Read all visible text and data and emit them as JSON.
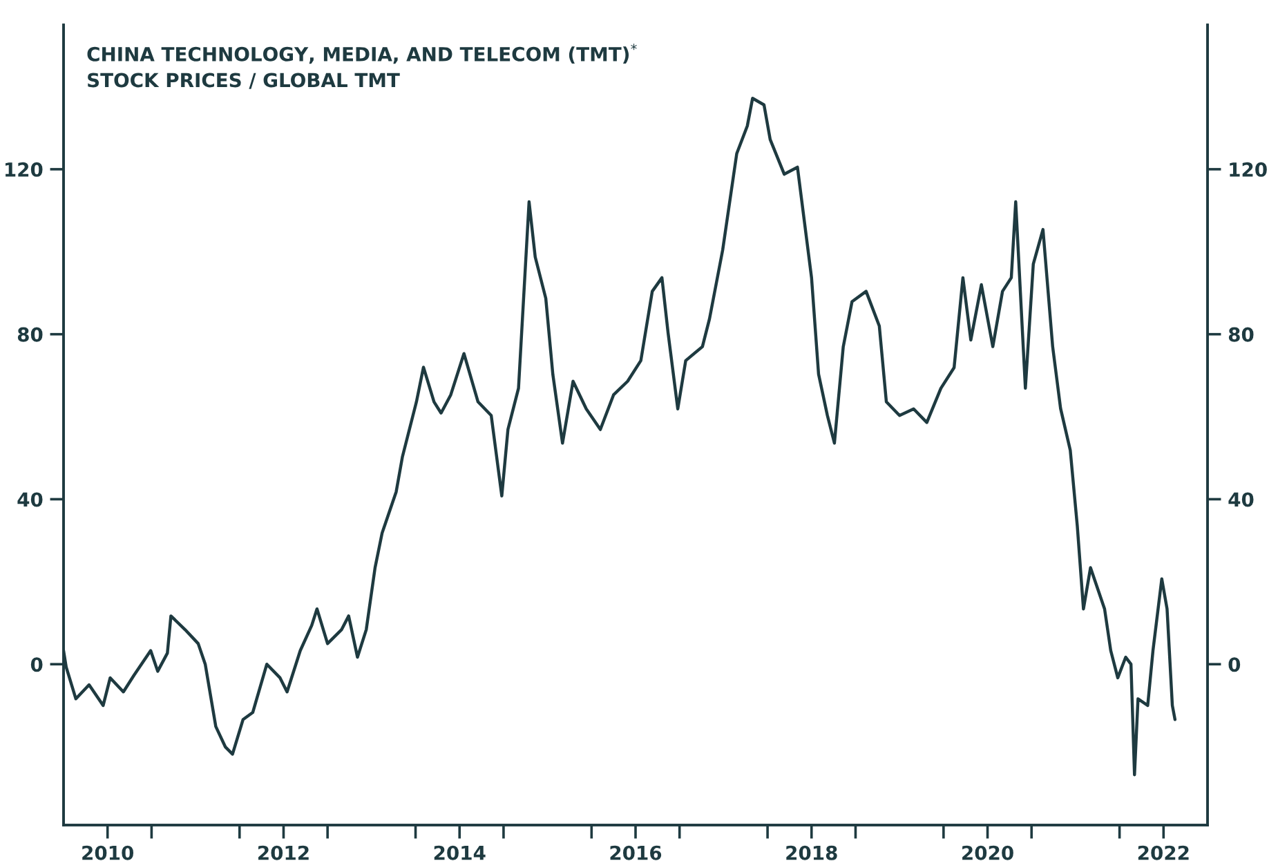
{
  "chart_data": {
    "type": "line",
    "title": "CHINA TECHNOLOGY, MEDIA, AND TELECOM (TMT)$^{*}$\nSTOCK PRICES / GLOBAL TMT",
    "x": [
      2010.0,
      2010.03,
      2010.14,
      2010.29,
      2010.45,
      2010.53,
      2010.68,
      2010.8,
      2010.99,
      2011.07,
      2011.18,
      2011.22,
      2011.38,
      2011.53,
      2011.61,
      2011.73,
      2011.84,
      2011.92,
      2012.04,
      2012.15,
      2012.31,
      2012.46,
      2012.54,
      2012.69,
      2012.82,
      2012.88,
      2013.0,
      2013.16,
      2013.24,
      2013.34,
      2013.44,
      2013.54,
      2013.62,
      2013.78,
      2013.85,
      2014.01,
      2014.09,
      2014.21,
      2014.29,
      2014.4,
      2014.55,
      2014.71,
      2014.86,
      2014.98,
      2015.05,
      2015.17,
      2015.29,
      2015.36,
      2015.48,
      2015.56,
      2015.67,
      2015.79,
      2015.94,
      2016.1,
      2016.25,
      2016.41,
      2016.56,
      2016.69,
      2016.8,
      2016.87,
      2016.98,
      2017.07,
      2017.26,
      2017.34,
      2017.49,
      2017.65,
      2017.77,
      2017.83,
      2017.96,
      2018.03,
      2018.19,
      2018.34,
      2018.5,
      2018.58,
      2018.68,
      2018.76,
      2018.86,
      2018.96,
      2019.12,
      2019.27,
      2019.35,
      2019.5,
      2019.66,
      2019.81,
      2019.97,
      2020.12,
      2020.22,
      2020.31,
      2020.43,
      2020.56,
      2020.67,
      2020.77,
      2020.82,
      2020.93,
      2021.02,
      2021.13,
      2021.24,
      2021.33,
      2021.44,
      2021.52,
      2021.59,
      2021.67,
      2021.83,
      2021.9,
      2021.98,
      2022.07,
      2022.13,
      2022.17,
      2022.21,
      2022.32,
      2022.38,
      2022.48,
      2022.54,
      2022.6,
      2022.63
    ],
    "series": [
      {
        "color": "#1e3a40",
        "values": [
          3.3,
          -0.7,
          -8.4,
          -5.0,
          -10.0,
          -3.3,
          -6.7,
          -2.7,
          3.3,
          -1.7,
          2.7,
          11.7,
          8.4,
          5.0,
          0,
          -15.1,
          -20.1,
          -21.8,
          -13.4,
          -11.7,
          0,
          -3.3,
          -6.7,
          3.3,
          9.4,
          13.4,
          5.0,
          8.4,
          11.7,
          1.7,
          8.4,
          23.4,
          31.8,
          41.8,
          50.2,
          63.6,
          72.0,
          63.6,
          60.9,
          65.3,
          75.3,
          63.6,
          60.3,
          40.8,
          56.9,
          66.9,
          112.1,
          98.7,
          88.7,
          70.3,
          53.6,
          68.6,
          61.9,
          56.9,
          65.3,
          68.6,
          73.6,
          90.4,
          93.7,
          80.3,
          61.9,
          73.6,
          77.0,
          83.7,
          100.4,
          123.8,
          130.5,
          137.2,
          135.6,
          127.2,
          118.8,
          120.5,
          93.7,
          70.3,
          60.3,
          53.6,
          76.9,
          87.9,
          90.4,
          82.0,
          63.6,
          60.3,
          61.9,
          58.6,
          66.9,
          71.9,
          93.7,
          78.6,
          92.0,
          77.0,
          90.4,
          93.7,
          112.1,
          66.9,
          97.0,
          105.4,
          77.0,
          62.0,
          51.9,
          33.5,
          13.4,
          23.4,
          13.4,
          3.3,
          -3.3,
          1.7,
          0,
          -26.8,
          -8.4,
          -10.0,
          3.3,
          20.7,
          13.4,
          -10.0,
          -13.4
        ]
      }
    ],
    "xlim": [
      2010,
      2023
    ],
    "xticks": [
      {
        "value": 2010.5,
        "label": "2010"
      },
      {
        "value": 2011,
        "label": null
      },
      {
        "value": 2012,
        "label": null
      },
      {
        "value": 2012.5,
        "label": "2012"
      },
      {
        "value": 2013,
        "label": null
      },
      {
        "value": 2014,
        "label": null
      },
      {
        "value": 2014.5,
        "label": "2014"
      },
      {
        "value": 2015,
        "label": null
      },
      {
        "value": 2016,
        "label": null
      },
      {
        "value": 2016.5,
        "label": "2016"
      },
      {
        "value": 2017,
        "label": null
      },
      {
        "value": 2018,
        "label": null
      },
      {
        "value": 2018.5,
        "label": "2018"
      },
      {
        "value": 2019,
        "label": null
      },
      {
        "value": 2020,
        "label": null
      },
      {
        "value": 2020.5,
        "label": "2020"
      },
      {
        "value": 2021,
        "label": null
      },
      {
        "value": 2022,
        "label": null
      },
      {
        "value": 2022.5,
        "label": "2022"
      }
    ],
    "ylim": [
      -39,
      155
    ],
    "yticks": [
      0,
      40,
      80,
      120
    ],
    "y2lim": [
      -39,
      155
    ],
    "y2ticks": [
      0,
      40,
      80,
      120
    ],
    "grid": false,
    "legend": false,
    "marker": "none",
    "line_style": "solid"
  }
}
